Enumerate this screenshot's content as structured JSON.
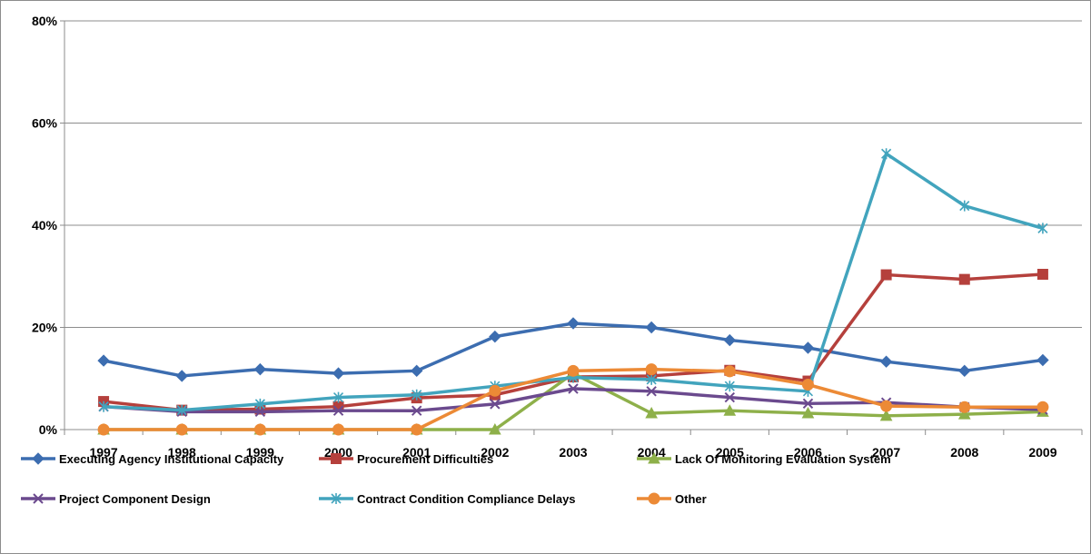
{
  "chart_data": {
    "type": "line",
    "title": "",
    "xlabel": "",
    "ylabel": "",
    "categories": [
      "1997",
      "1998",
      "1999",
      "2000",
      "2001",
      "2002",
      "2003",
      "2004",
      "2005",
      "2006",
      "2007",
      "2008",
      "2009"
    ],
    "ylim": [
      0,
      80
    ],
    "y_ticks": [
      0,
      20,
      40,
      60,
      80
    ],
    "y_tick_labels": [
      "0%",
      "20%",
      "40%",
      "60%",
      "80%"
    ],
    "grid": "horizontal",
    "legend_position": "bottom",
    "series": [
      {
        "name": "Executing Agency Institutional Capacity",
        "color": "#3c6db0",
        "marker": "diamond",
        "values": [
          13.5,
          10.5,
          11.8,
          11.0,
          11.5,
          18.2,
          20.8,
          20.0,
          17.5,
          16.0,
          13.3,
          11.5,
          13.6
        ]
      },
      {
        "name": "Procurement Difficulties",
        "color": "#b5403c",
        "marker": "square",
        "values": [
          5.5,
          3.8,
          4.0,
          4.5,
          6.2,
          6.8,
          10.3,
          10.5,
          11.6,
          9.5,
          30.3,
          29.4,
          30.4
        ]
      },
      {
        "name": "Lack Of Monitoring Evaluation System",
        "color": "#8eb04a",
        "marker": "triangle",
        "values": [
          0,
          0,
          0,
          0,
          0,
          0,
          11.0,
          3.2,
          3.7,
          3.2,
          2.7,
          3.0,
          3.5
        ]
      },
      {
        "name": "Project Component  Design",
        "color": "#6b4a8e",
        "marker": "x",
        "values": [
          4.5,
          3.5,
          3.5,
          3.7,
          3.7,
          5.0,
          8.0,
          7.5,
          6.3,
          5.1,
          5.3,
          4.4,
          3.9
        ]
      },
      {
        "name": "Contract Condition  Compliance Delays",
        "color": "#42a4bd",
        "marker": "asterisk",
        "values": [
          4.5,
          3.8,
          5.0,
          6.3,
          6.8,
          8.5,
          10.2,
          9.8,
          8.5,
          7.5,
          54.0,
          43.8,
          39.4
        ]
      },
      {
        "name": "Other",
        "color": "#ec8a36",
        "marker": "circle",
        "values": [
          0,
          0,
          0,
          0,
          0,
          7.6,
          11.5,
          11.8,
          11.4,
          8.8,
          4.6,
          4.4,
          4.4
        ]
      }
    ]
  }
}
